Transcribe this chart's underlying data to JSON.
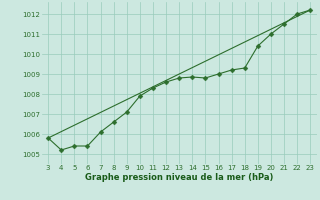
{
  "x": [
    3,
    4,
    5,
    6,
    7,
    8,
    9,
    10,
    11,
    12,
    13,
    14,
    15,
    16,
    17,
    18,
    19,
    20,
    21,
    22,
    23
  ],
  "y": [
    1005.8,
    1005.2,
    1005.4,
    1005.4,
    1006.1,
    1006.6,
    1007.1,
    1007.9,
    1008.3,
    1008.6,
    1008.8,
    1008.85,
    1008.8,
    1009.0,
    1009.2,
    1009.3,
    1010.4,
    1011.0,
    1011.5,
    1012.0,
    1012.2
  ],
  "trend_x": [
    3,
    23
  ],
  "trend_y": [
    1005.8,
    1012.2
  ],
  "line_color": "#2d6e2d",
  "marker_color": "#2d6e2d",
  "bg_color": "#cce8e0",
  "grid_color": "#99ccbb",
  "xlabel": "Graphe pression niveau de la mer (hPa)",
  "xlabel_color": "#1a5c1a",
  "tick_color": "#2d6e2d",
  "ylim": [
    1004.5,
    1012.6
  ],
  "yticks": [
    1005,
    1006,
    1007,
    1008,
    1009,
    1010,
    1011,
    1012
  ],
  "xlim": [
    2.5,
    23.5
  ],
  "xticks": [
    3,
    4,
    5,
    6,
    7,
    8,
    9,
    10,
    11,
    12,
    13,
    14,
    15,
    16,
    17,
    18,
    19,
    20,
    21,
    22,
    23
  ]
}
